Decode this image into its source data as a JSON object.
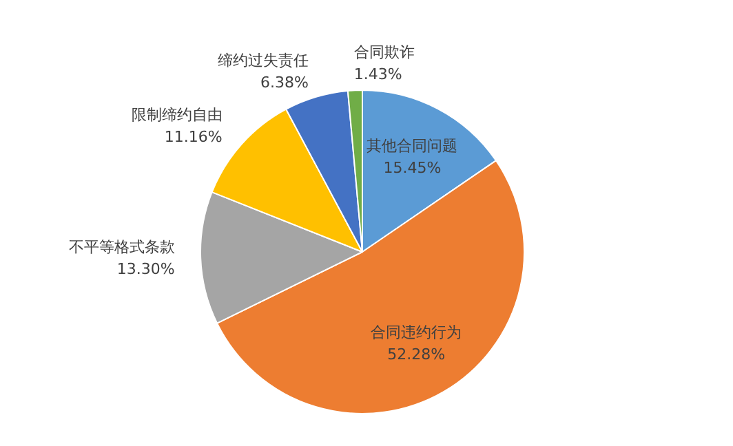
{
  "chart_data": {
    "type": "pie",
    "categories": [
      "其他合同问题",
      "合同违约行为",
      "不平等格式条款",
      "限制缔约自由",
      "缔约过失责任",
      "合同欺诈"
    ],
    "values": [
      15.45,
      52.28,
      13.3,
      11.16,
      6.38,
      1.43
    ],
    "value_labels": [
      "15.45%",
      "52.28%",
      "13.30%",
      "11.16%",
      "6.38%",
      "1.43%"
    ],
    "colors": [
      "#5b9bd5",
      "#ed7d31",
      "#a5a5a5",
      "#ffc000",
      "#4472c4",
      "#70ad47"
    ],
    "legend": false
  }
}
